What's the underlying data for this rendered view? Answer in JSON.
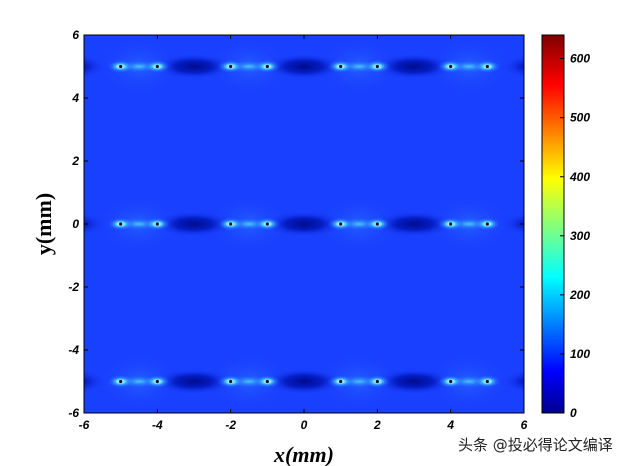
{
  "chart_data": {
    "type": "heatmap",
    "title": "",
    "xlabel": "x(mm)",
    "ylabel": "y(mm)",
    "xlim": [
      -6,
      6
    ],
    "ylim": [
      -6,
      6
    ],
    "x_ticks": [
      "-6",
      "-4",
      "-2",
      "0",
      "2",
      "4",
      "6"
    ],
    "y_ticks": [
      "6",
      "4",
      "2",
      "0",
      "-2",
      "-4",
      "-6"
    ],
    "colorbar": {
      "range": [
        0,
        640
      ],
      "ticks": [
        "600",
        "500",
        "400",
        "300",
        "200",
        "100",
        "0"
      ],
      "colormap": "jet"
    },
    "background_value": 95,
    "grid": false,
    "rows_y": [
      5,
      0,
      -5
    ],
    "pairs": [
      {
        "x1": -5,
        "x2": -4
      },
      {
        "x1": -2,
        "x2": -1
      },
      {
        "x1": 1,
        "x2": 2
      },
      {
        "x1": 4,
        "x2": 5
      }
    ],
    "peak_value": 270,
    "between_pair_value": 150,
    "low_value": 30
  },
  "watermark": "头条 @投必得论文编译",
  "colors": {
    "background": "#1a40ff",
    "low": "#000a80",
    "high": "#e6ffff"
  }
}
